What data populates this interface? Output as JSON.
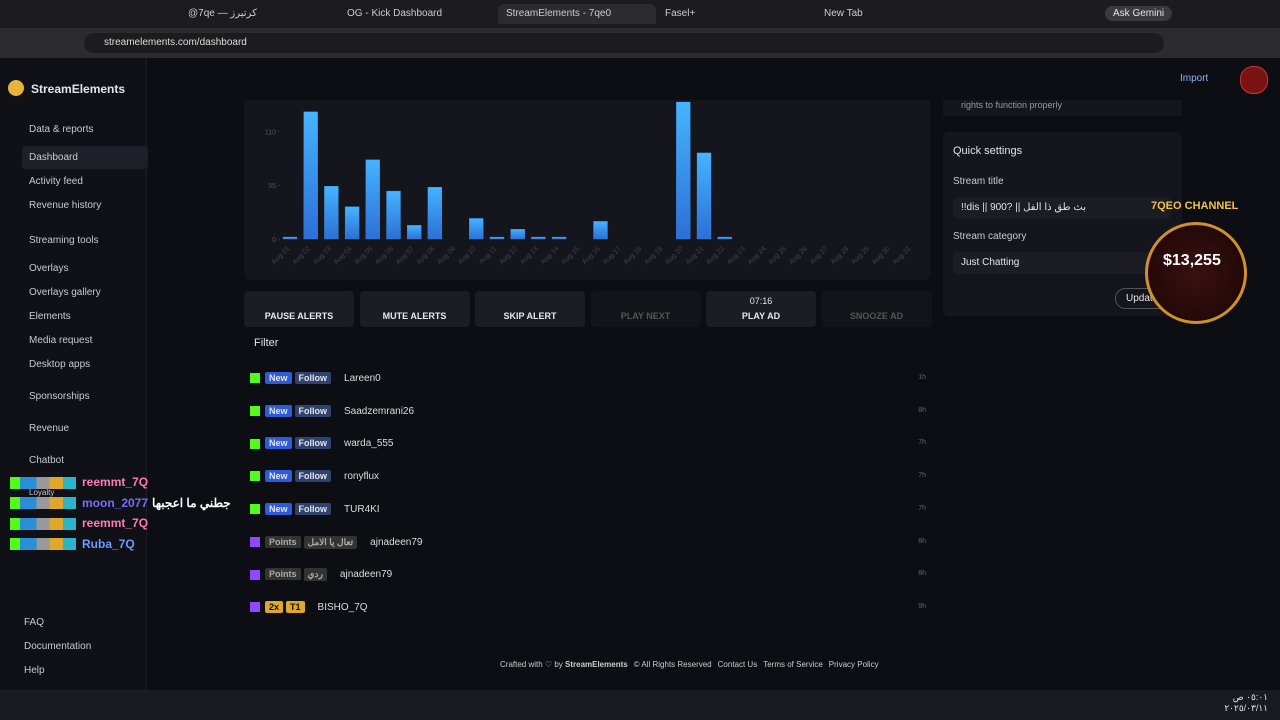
{
  "browser": {
    "tabs": [
      "@7qe — كرتيرز",
      "OG - Kick Dashboard",
      "StreamElements - 7qe0",
      "Fasel+",
      "New Tab"
    ],
    "gemini": "Ask Gemini",
    "url": "streamelements.com/dashboard"
  },
  "header": {
    "brand": "StreamElements",
    "import": "Import"
  },
  "sidebar": {
    "groups": [
      {
        "label": "Data & reports",
        "items": [
          "Dashboard",
          "Activity feed",
          "Revenue history"
        ]
      },
      {
        "label": "Streaming tools",
        "items": [
          "Overlays",
          "Overlays gallery",
          "Elements",
          "Media request",
          "Desktop apps"
        ]
      }
    ],
    "collapsed": [
      "Sponsorships",
      "Revenue",
      "Chatbot"
    ],
    "loyalty": "Loyalty",
    "links": [
      "FAQ",
      "Documentation",
      "Help"
    ]
  },
  "chart_data": {
    "type": "bar",
    "color": "#3b9be8",
    "categories": [
      "Aug 01",
      "Aug 02",
      "Aug 03",
      "Aug 04",
      "Aug 05",
      "Aug 06",
      "Aug 07",
      "Aug 08",
      "Aug 09",
      "Aug 10",
      "Aug 11",
      "Aug 12",
      "Aug 13",
      "Aug 14",
      "Aug 15",
      "Aug 16",
      "Aug 17",
      "Aug 18",
      "Aug 19",
      "Aug 20",
      "Aug 21",
      "Aug 22",
      "Aug 23",
      "Aug 24",
      "Aug 25",
      "Aug 26",
      "Aug 27",
      "Aug 28",
      "Aug 29",
      "Aug 30",
      "Aug 31"
    ],
    "values": [
      2,
      130,
      54,
      33,
      81,
      49,
      14,
      53,
      0,
      21,
      2,
      10,
      2,
      2,
      0,
      18,
      0,
      0,
      0,
      140,
      88,
      2,
      0,
      0,
      0,
      0,
      0,
      0,
      0,
      0,
      0
    ],
    "ylim": [
      0,
      140
    ],
    "yticks": [
      0,
      55,
      110
    ]
  },
  "controls": {
    "buttons": [
      "PAUSE ALERTS",
      "MUTE ALERTS",
      "SKIP ALERT",
      "PLAY NEXT",
      "PLAY AD",
      "SNOOZE AD"
    ],
    "timer": "07:16",
    "filter": "Filter"
  },
  "feed": [
    {
      "badges": [
        "New",
        "Follow"
      ],
      "name": "Lareen0",
      "time": "1h"
    },
    {
      "badges": [
        "New",
        "Follow"
      ],
      "name": "Saadzemrani26",
      "time": "8h"
    },
    {
      "badges": [
        "New",
        "Follow"
      ],
      "name": "warda_555",
      "time": "7h"
    },
    {
      "badges": [
        "New",
        "Follow"
      ],
      "name": "ronyflux",
      "time": "7h"
    },
    {
      "badges": [
        "New",
        "Follow"
      ],
      "name": "TUR4KI",
      "time": "7h"
    },
    {
      "badges": [
        "Points",
        "تعال يا الامل"
      ],
      "name": "ajnadeen79",
      "time": "8h"
    },
    {
      "badges": [
        "Points",
        "ردي"
      ],
      "name": "ajnadeen79",
      "time": "8h"
    },
    {
      "badges": [
        "2x",
        "T1"
      ],
      "name": "BISHO_7Q",
      "time": "9h"
    }
  ],
  "chat": [
    {
      "name": "reemmt_7Q"
    },
    {
      "name": "moon_2077",
      "message": "جطني ما اعجبها"
    },
    {
      "name": "reemmt_7Q"
    },
    {
      "name": "Ruba_7Q"
    }
  ],
  "quick_settings": {
    "notice": "rights to function properly",
    "title": "Quick settings",
    "stream_title_label": "Stream title",
    "stream_title": "!!dis  ||  900?  || بث طق ذا الفل",
    "category_label": "Stream category",
    "category": "Just Chatting",
    "update": "Update"
  },
  "overlay": {
    "channel": "7QEO CHANNEL",
    "amount": "$13,255"
  },
  "footer": {
    "crafted": "Crafted with",
    "by": "by",
    "brand": "StreamElements",
    "links": [
      "© All Rights Reserved",
      "Contact Us",
      "Terms of Service",
      "Privacy Policy"
    ]
  },
  "taskbar": {
    "time": "٠٥:٠١ ص",
    "date": "٢٠٢٥/٠٣/١١"
  }
}
